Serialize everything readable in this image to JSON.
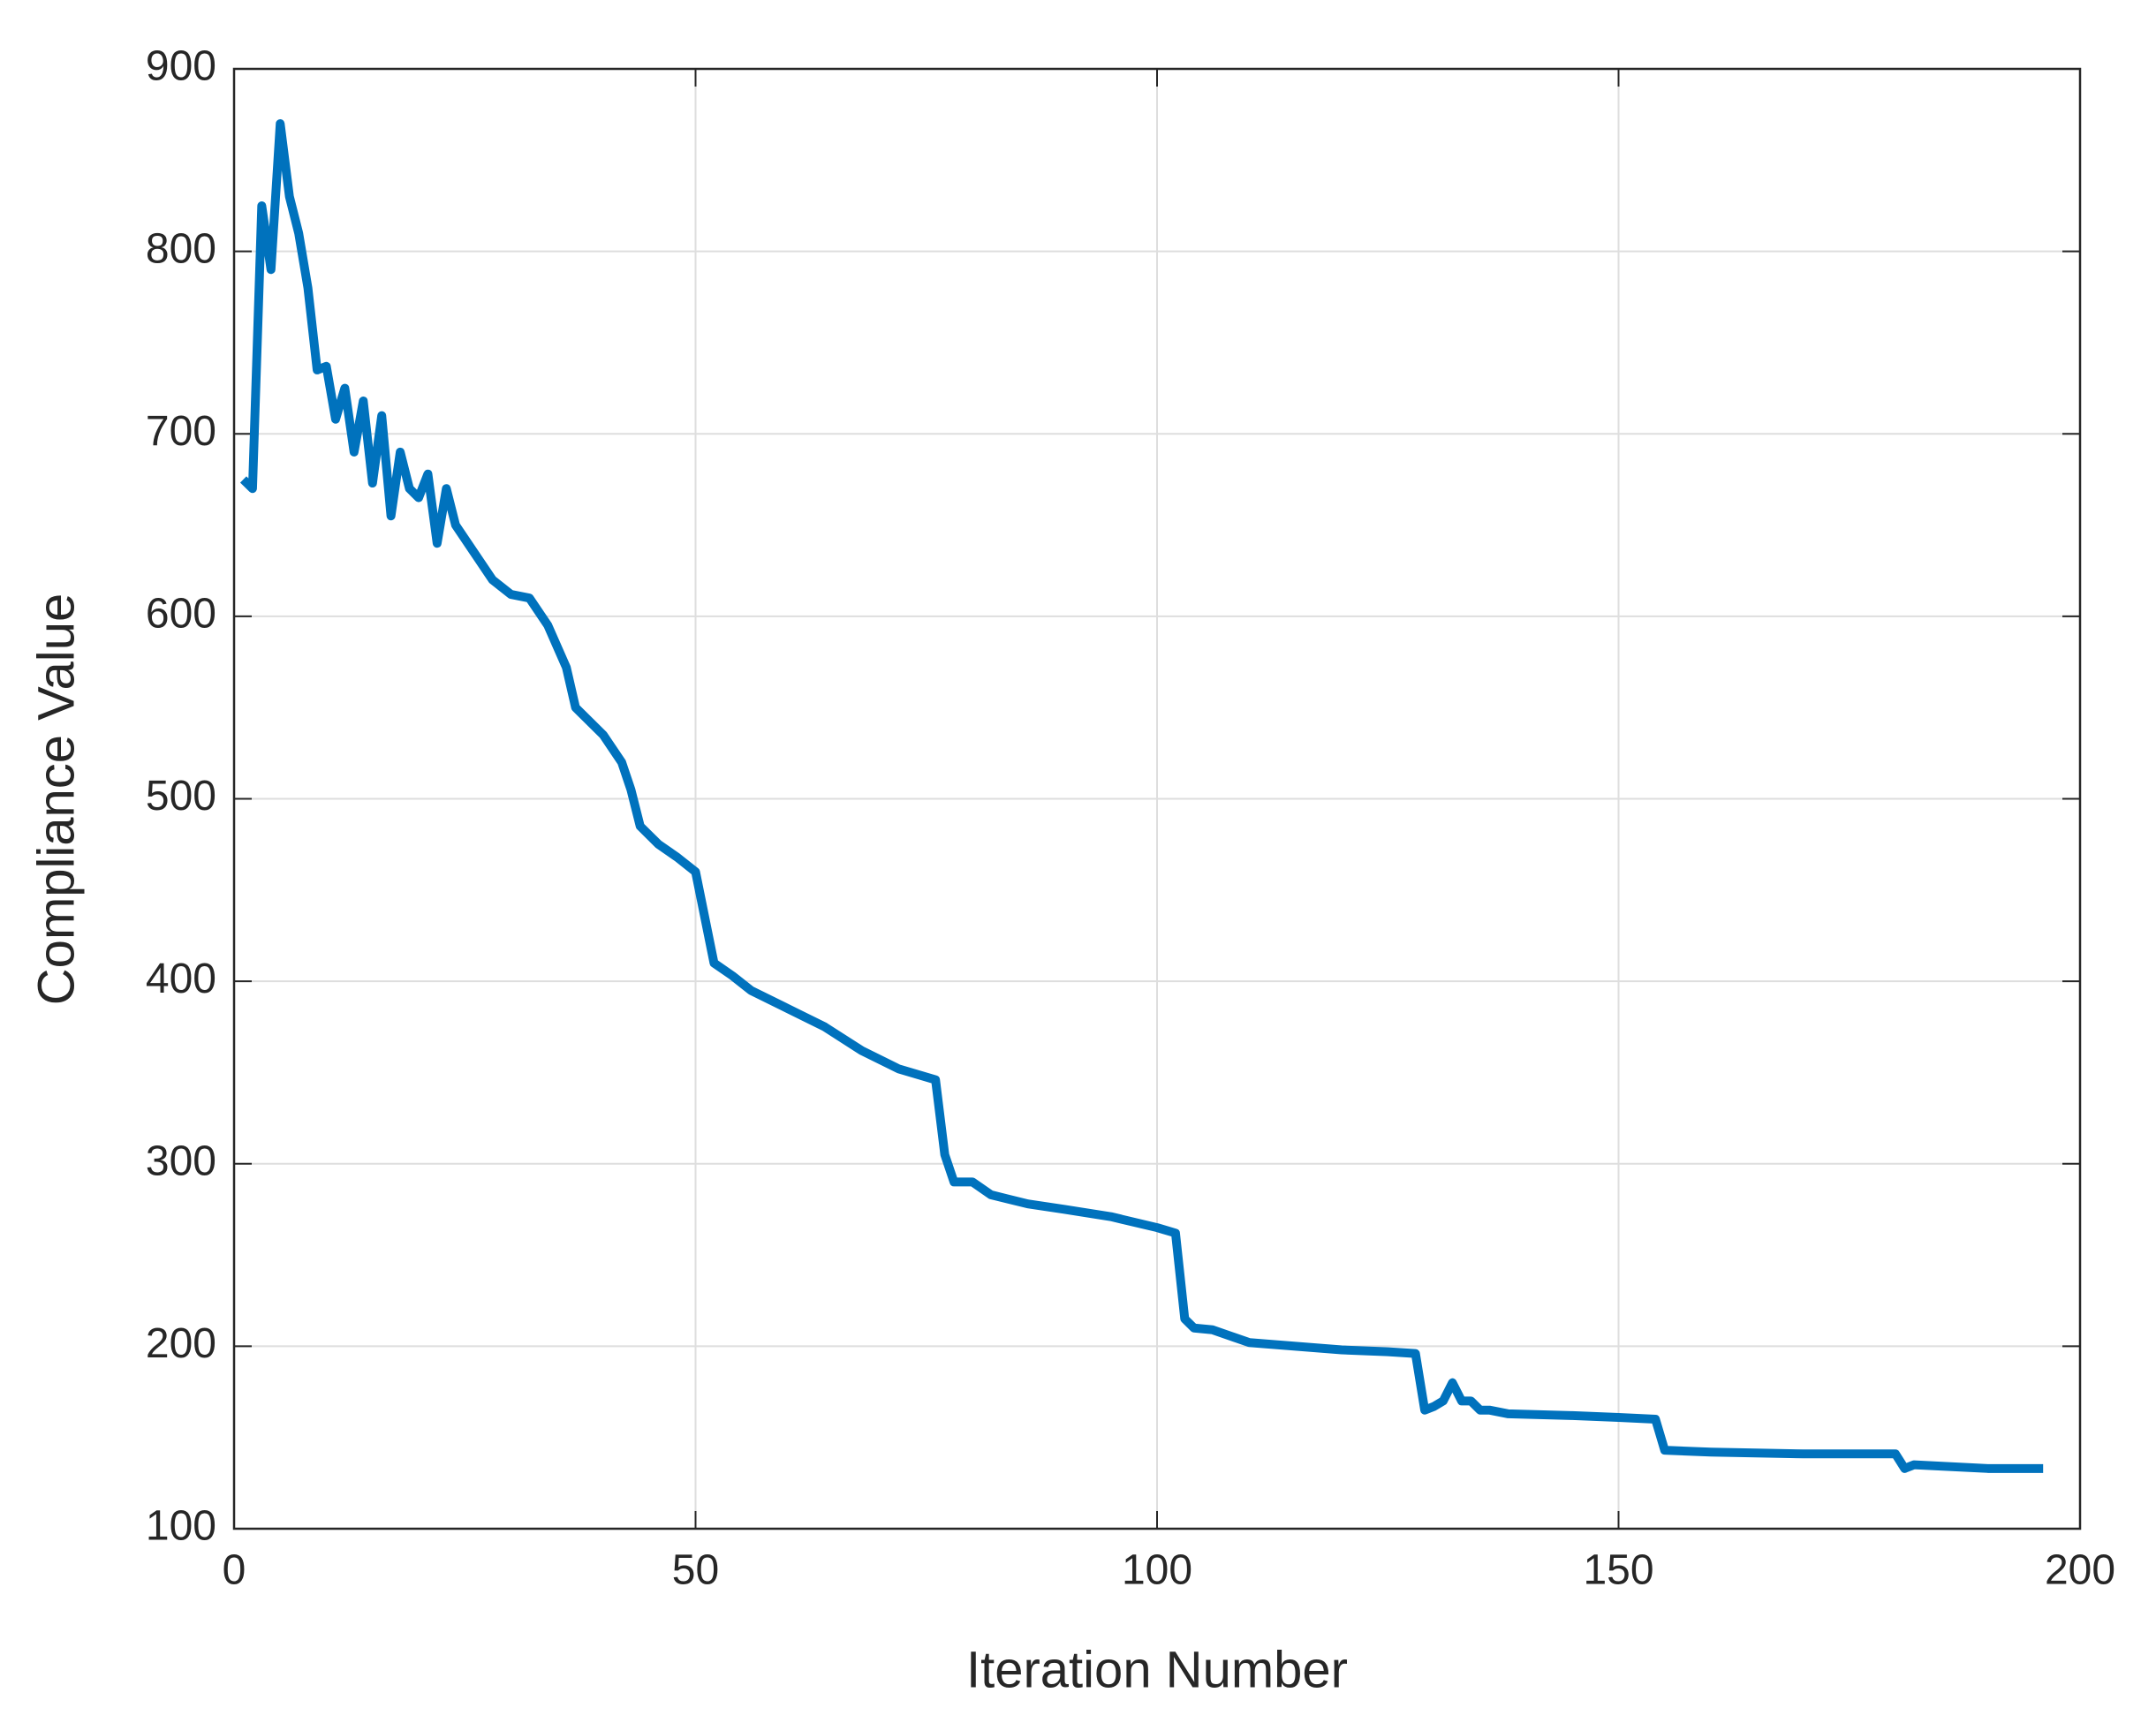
{
  "chart_data": {
    "type": "line",
    "x_label": "Iteration Number",
    "y_label": "Compliance Value",
    "x": [
      1,
      2,
      3,
      4,
      5,
      6,
      7,
      8,
      9,
      10,
      11,
      12,
      13,
      14,
      15,
      16,
      17,
      18,
      19,
      20,
      21,
      22,
      23,
      24,
      26,
      28,
      30,
      32,
      34,
      36,
      37,
      40,
      42,
      43,
      44,
      46,
      48,
      50,
      52,
      54,
      56,
      60,
      64,
      68,
      72,
      76,
      77,
      78,
      80,
      82,
      86,
      90,
      95,
      100,
      102,
      103,
      104,
      106,
      110,
      115,
      120,
      125,
      128,
      129,
      130,
      131,
      132,
      133,
      134,
      135,
      136,
      138,
      145,
      150,
      154,
      155,
      160,
      170,
      180,
      181,
      182,
      190,
      196
    ],
    "series": [
      {
        "color": "#0072bd",
        "values": [
          675,
          670,
          825,
          790,
          870,
          830,
          810,
          780,
          735,
          737,
          708,
          725,
          690,
          718,
          673,
          710,
          655,
          690,
          670,
          665,
          678,
          640,
          670,
          650,
          635,
          620,
          612,
          610,
          595,
          572,
          550,
          535,
          520,
          505,
          485,
          475,
          468,
          460,
          410,
          403,
          395,
          385,
          375,
          362,
          352,
          346,
          305,
          290,
          290,
          283,
          278,
          275,
          271,
          265,
          262,
          215,
          210,
          209,
          202,
          200,
          198,
          197,
          196,
          165,
          167,
          170,
          180,
          170,
          170,
          165,
          165,
          163,
          162,
          161,
          160,
          143,
          142,
          141,
          141,
          133,
          135,
          133,
          133
        ]
      }
    ],
    "xlim": [
      0,
      200
    ],
    "xticks": [
      0,
      50,
      100,
      150,
      200
    ],
    "ylim": [
      100,
      900
    ],
    "yticks": [
      100,
      200,
      300,
      400,
      500,
      600,
      700,
      800,
      900
    ],
    "grid": true
  }
}
